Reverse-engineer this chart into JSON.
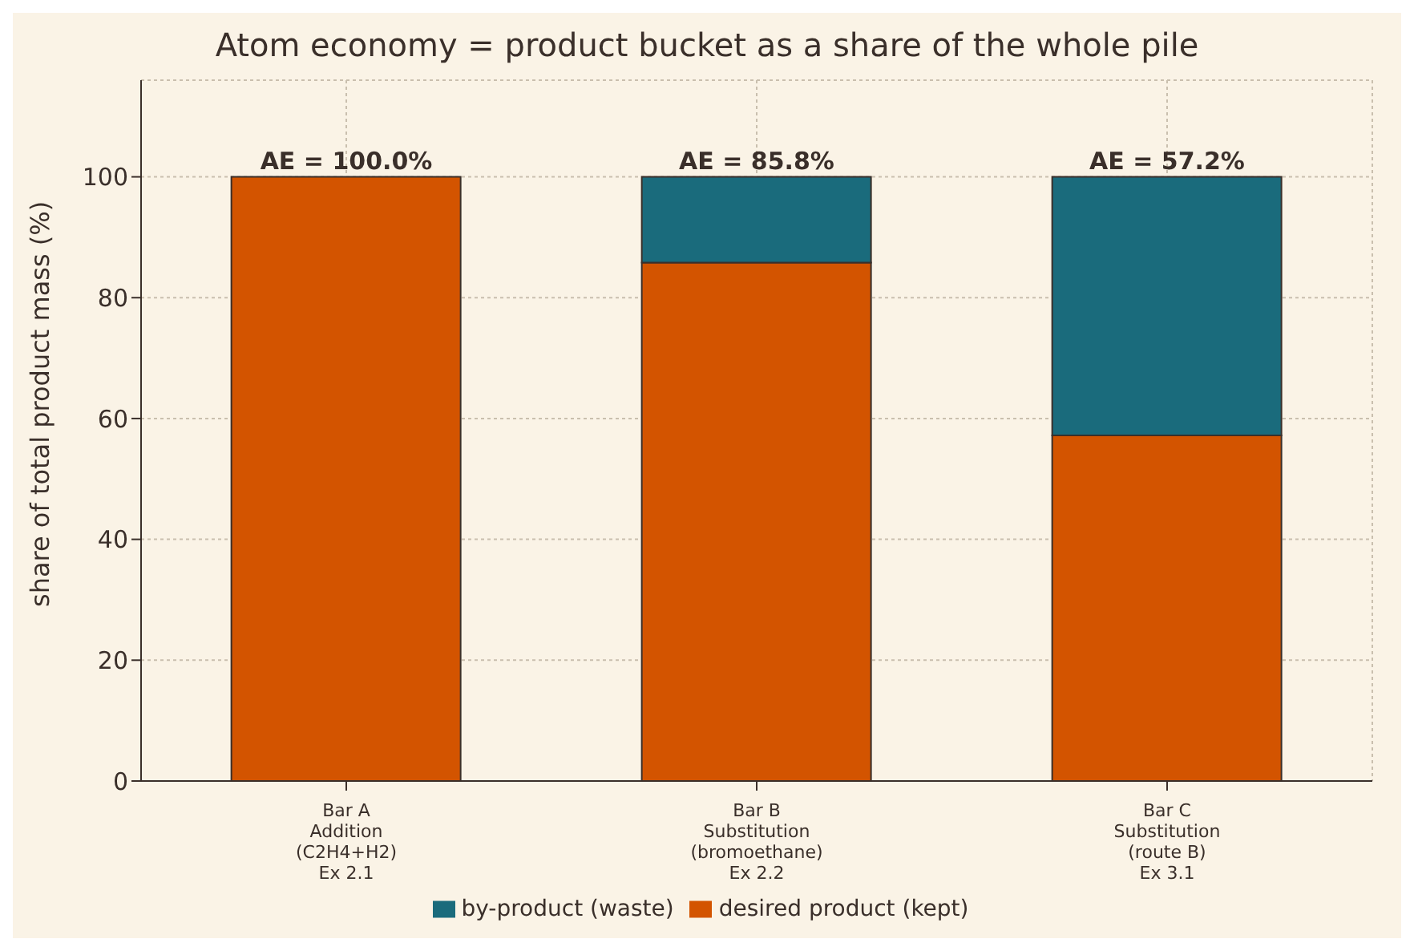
{
  "chart_data": {
    "type": "bar",
    "stacked": true,
    "title": "Atom economy = product bucket as a share of the whole pile",
    "ylabel": "share of total product mass (%)",
    "categories": [
      "Bar A\nAddition\n(C2H4+H2)\nEx 2.1",
      "Bar B\nSubstitution\n(bromoethane)\nEx 2.2",
      "Bar C\nSubstitution\n(route B)\nEx 3.1"
    ],
    "series": [
      {
        "name": "desired product (kept)",
        "color": "#d35400",
        "values": [
          100,
          85.8,
          57.2
        ]
      },
      {
        "name": "by-product (waste)",
        "color": "#1a6b7c",
        "values": [
          0,
          14.2,
          42.8
        ]
      }
    ],
    "annotations": [
      {
        "text": "AE = 100.0%",
        "x": "Bar A\nAddition\n(C2H4+H2)\nEx 2.1",
        "y": 100
      },
      {
        "text": "AE = 85.8%",
        "x": "Bar B\nSubstitution\n(bromoethane)\nEx 2.2",
        "y": 100
      },
      {
        "text": "AE = 57.2%",
        "x": "Bar C\nSubstitution\n(route B)\nEx 3.1",
        "y": 100
      }
    ],
    "ylim": [
      0,
      116
    ],
    "yticks": [
      0,
      20,
      40,
      60,
      80,
      100
    ],
    "grid": true,
    "legend": "bottom"
  }
}
